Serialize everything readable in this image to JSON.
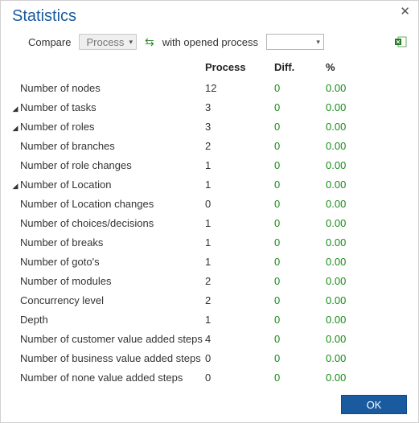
{
  "title": "Statistics",
  "close_glyph": "✕",
  "toolbar": {
    "compare_label": "Compare",
    "dropdown1_value": "Process",
    "swap_glyph": "⇆",
    "opened_label": "with opened process"
  },
  "columns": {
    "metric": "",
    "process": "Process",
    "diff": "Diff.",
    "pct": "%"
  },
  "rows": [
    {
      "expandable": false,
      "label": "Number of nodes",
      "process": "12",
      "diff": "0",
      "pct": "0.00"
    },
    {
      "expandable": true,
      "label": "Number of tasks",
      "process": "3",
      "diff": "0",
      "pct": "0.00"
    },
    {
      "expandable": true,
      "label": "Number of roles",
      "process": "3",
      "diff": "0",
      "pct": "0.00"
    },
    {
      "expandable": false,
      "label": "Number of branches",
      "process": "2",
      "diff": "0",
      "pct": "0.00"
    },
    {
      "expandable": false,
      "label": "Number of role changes",
      "process": "1",
      "diff": "0",
      "pct": "0.00"
    },
    {
      "expandable": true,
      "label": "Number of Location",
      "process": "1",
      "diff": "0",
      "pct": "0.00"
    },
    {
      "expandable": false,
      "label": "Number of Location changes",
      "process": "0",
      "diff": "0",
      "pct": "0.00"
    },
    {
      "expandable": false,
      "label": "Number of choices/decisions",
      "process": "1",
      "diff": "0",
      "pct": "0.00"
    },
    {
      "expandable": false,
      "label": "Number of breaks",
      "process": "1",
      "diff": "0",
      "pct": "0.00"
    },
    {
      "expandable": false,
      "label": "Number of goto's",
      "process": "1",
      "diff": "0",
      "pct": "0.00"
    },
    {
      "expandable": false,
      "label": "Number of modules",
      "process": "2",
      "diff": "0",
      "pct": "0.00"
    },
    {
      "expandable": false,
      "label": "Concurrency level",
      "process": "2",
      "diff": "0",
      "pct": "0.00"
    },
    {
      "expandable": false,
      "label": "Depth",
      "process": "1",
      "diff": "0",
      "pct": "0.00"
    },
    {
      "expandable": false,
      "label": "Number of customer value added steps",
      "process": "4",
      "diff": "0",
      "pct": "0.00"
    },
    {
      "expandable": false,
      "label": "Number of business value added steps",
      "process": "0",
      "diff": "0",
      "pct": "0.00"
    },
    {
      "expandable": false,
      "label": "Number of none value added steps",
      "process": "0",
      "diff": "0",
      "pct": "0.00"
    }
  ],
  "footer": {
    "ok_label": "OK"
  },
  "colors": {
    "accent": "#1a5a9e",
    "positive": "#178a17"
  }
}
